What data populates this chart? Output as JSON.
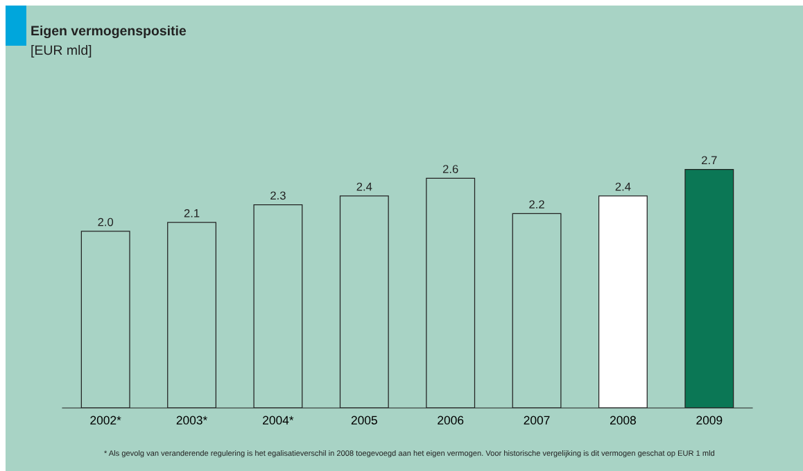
{
  "chart_data": {
    "type": "bar",
    "title": "Eigen vermogenspositie",
    "subtitle": "[EUR mld]",
    "categories": [
      "2002*",
      "2003*",
      "2004*",
      "2005",
      "2006",
      "2007",
      "2008",
      "2009"
    ],
    "values": [
      2.0,
      2.1,
      2.3,
      2.4,
      2.6,
      2.2,
      2.4,
      2.7
    ],
    "colors": [
      "#a8d3c5",
      "#a8d3c5",
      "#a8d3c5",
      "#a8d3c5",
      "#a8d3c5",
      "#a8d3c5",
      "#ffffff",
      "#0b7755"
    ],
    "value_labels": [
      "2.0",
      "2.1",
      "2.3",
      "2.4",
      "2.6",
      "2.2",
      "2.4",
      "2.7"
    ],
    "grid": false,
    "legend": false,
    "annotations": [
      "* Als gevolg van veranderende regulering is het egalisatieverschil in 2008 toegevoegd aan het eigen vermogen. Voor historische vergelijking is dit vermogen geschat op EUR 1 mld"
    ]
  }
}
